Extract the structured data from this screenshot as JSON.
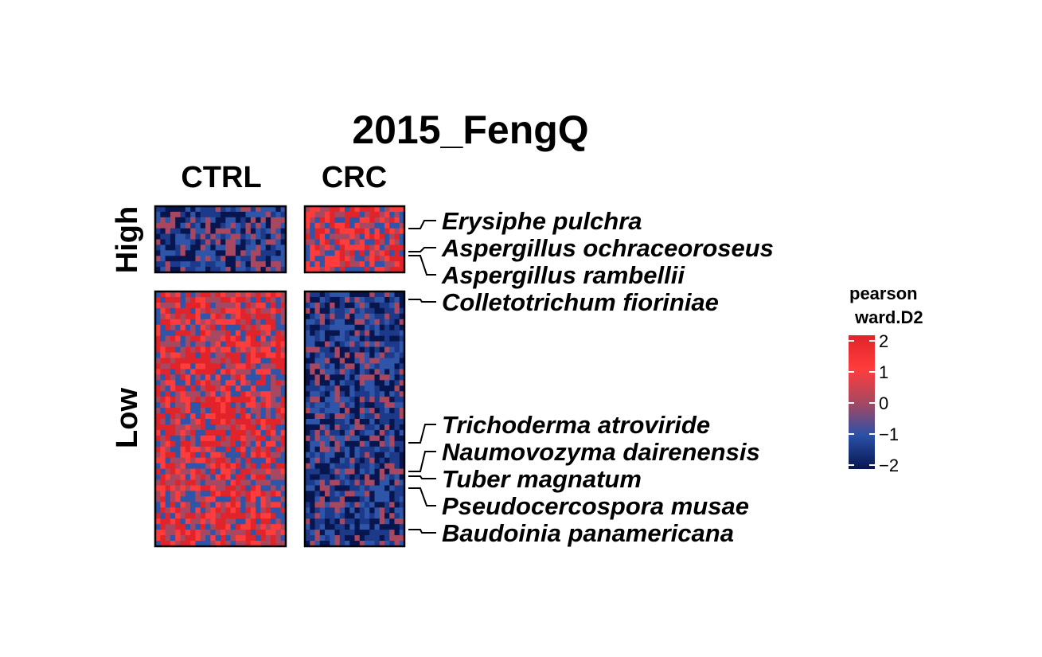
{
  "chart_data": {
    "type": "heatmap",
    "title": "2015_FengQ",
    "columns": [
      "CTRL",
      "CRC"
    ],
    "row_groups": [
      "High",
      "Low"
    ],
    "labeled_species": [
      {
        "name": "Erysiphe pulchra",
        "group": "High"
      },
      {
        "name": "Aspergillus ochraceoroseus",
        "group": "High"
      },
      {
        "name": "Aspergillus rambellii",
        "group": "High"
      },
      {
        "name": "Colletotrichum fioriniae",
        "group": "Low"
      },
      {
        "name": "Trichoderma atroviride",
        "group": "Low"
      },
      {
        "name": "Naumovozyma dairenensis",
        "group": "Low"
      },
      {
        "name": "Tuber magnatum",
        "group": "Low"
      },
      {
        "name": "Pseudocercospora musae",
        "group": "Low"
      },
      {
        "name": "Baudoinia panamericana",
        "group": "Low"
      }
    ],
    "legend": {
      "title_line1": "pearson",
      "title_line2": "ward.D2",
      "ticks": [
        "2",
        "1",
        "0",
        "−1",
        "−2"
      ],
      "range": [
        -2,
        2
      ],
      "colors": {
        "low": "#08164f",
        "mid_low": "#2a50a8",
        "mid": "#a84860",
        "mid_high": "#ff3c3c",
        "high": "#e0242a"
      }
    },
    "block_tendency": {
      "CTRL": {
        "High": -1,
        "Low": 1
      },
      "CRC": {
        "High": 1,
        "Low": -1
      }
    }
  }
}
